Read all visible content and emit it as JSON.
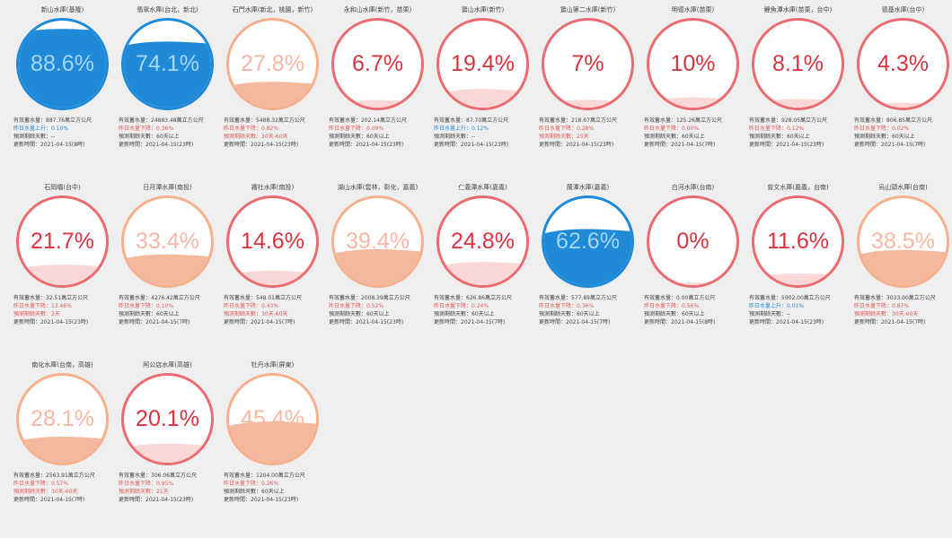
{
  "colors": {
    "blue": "#1f8ad8",
    "blue_text": "#a8d6f5",
    "red": "#ea6c70",
    "red_text": "#d9333f",
    "orange": "#f6b08c",
    "orange_fill": "#f4b89e",
    "orange_text": "#f6b8a4",
    "pink_fill": "#fbd7d8",
    "change_down": "#e05a5a",
    "change_up": "#2a8bd6"
  },
  "reservoirs": [
    {
      "name": "新山水庫(基隆)",
      "percent": "88.6%",
      "level": 0.886,
      "theme": "blue",
      "storage": "有效蓄水量：887.76萬立方公尺",
      "change": "昨日水量上升：0.10%",
      "change_dir": "up",
      "warn": "",
      "days": "預測剩餘天數：--",
      "updated": "更新時間：2021-04-15(8時)"
    },
    {
      "name": "翡翠水庫(台北，新北)",
      "percent": "74.1%",
      "level": 0.741,
      "theme": "blue",
      "storage": "有效蓄水量：24883.48萬立方公尺",
      "change": "昨日水量下降：0.36%",
      "change_dir": "down",
      "warn": "",
      "days": "預測剩餘天數：60天以上",
      "updated": "更新時間：2021-04-15(23時)"
    },
    {
      "name": "石門水庫(新北，桃園，新竹)",
      "percent": "27.8%",
      "level": 0.278,
      "theme": "orange",
      "storage": "有效蓄水量：5488.32萬立方公尺",
      "change": "昨日水量下降：0.82%",
      "change_dir": "down",
      "warn": "預測剩餘天數：30天-60天",
      "days": "",
      "updated": "更新時間：2021-04-15(23時)"
    },
    {
      "name": "永和山水庫(新竹，苗栗)",
      "percent": "6.7%",
      "level": 0.067,
      "theme": "red",
      "storage": "有效蓄水量：202.14萬立方公尺",
      "change": "昨日水量下降：0.09%",
      "change_dir": "down",
      "warn": "",
      "days": "預測剩餘天數：60天以上",
      "updated": "更新時間：2021-04-15(23時)"
    },
    {
      "name": "寶山水庫(新竹)",
      "percent": "19.4%",
      "level": 0.194,
      "theme": "red",
      "storage": "有效蓄水量：87.70萬立方公尺",
      "change": "昨日水量上升：0.12%",
      "change_dir": "up",
      "warn": "",
      "days": "預測剩餘天數：--",
      "updated": "更新時間：2021-04-15(23時)"
    },
    {
      "name": "寶山第二水庫(新竹)",
      "percent": "7%",
      "level": 0.07,
      "theme": "red",
      "storage": "有效蓄水量：218.67萬立方公尺",
      "change": "昨日水量下降：0.28%",
      "change_dir": "down",
      "warn": "預測剩餘天數：25天",
      "days": "",
      "updated": "更新時間：2021-04-15(23時)"
    },
    {
      "name": "明德水庫(苗栗)",
      "percent": "10%",
      "level": 0.1,
      "theme": "red",
      "storage": "有效蓄水量：125.26萬立方公尺",
      "change": "昨日水量下降：0.00%",
      "change_dir": "down",
      "warn": "",
      "days": "預測剩餘天數：60天以上",
      "updated": "更新時間：2021-04-15(7時)"
    },
    {
      "name": "鯉魚潭水庫(苗栗，台中)",
      "percent": "8.1%",
      "level": 0.081,
      "theme": "red",
      "storage": "有效蓄水量：928.05萬立方公尺",
      "change": "昨日水量下降：0.12%",
      "change_dir": "down",
      "warn": "",
      "days": "預測剩餘天數：60天以上",
      "updated": "更新時間：2021-04-15(23時)"
    },
    {
      "name": "德基水庫(台中)",
      "percent": "4.3%",
      "level": 0.043,
      "theme": "red",
      "storage": "有效蓄水量：806.85萬立方公尺",
      "change": "昨日水量下降：0.02%",
      "change_dir": "down",
      "warn": "",
      "days": "預測剩餘天數：60天以上",
      "updated": "更新時間：2021-04-15(7時)"
    },
    {
      "name": "石岡壩(台中)",
      "percent": "21.7%",
      "level": 0.217,
      "theme": "red",
      "storage": "有效蓄水量：32.51萬立方公尺",
      "change": "昨日水量下降：13.46%",
      "change_dir": "down",
      "warn": "預測剩餘天數：2天",
      "days": "",
      "updated": "更新時間：2021-04-15(23時)"
    },
    {
      "name": "日月潭水庫(南投)",
      "percent": "33.4%",
      "level": 0.334,
      "theme": "orange",
      "storage": "有效蓄水量：4276.42萬立方公尺",
      "change": "昨日水量下降：0.10%",
      "change_dir": "down",
      "warn": "",
      "days": "預測剩餘天數：60天以上",
      "updated": "更新時間：2021-04-15(7時)"
    },
    {
      "name": "霧社水庫(南投)",
      "percent": "14.6%",
      "level": 0.146,
      "theme": "red",
      "storage": "有效蓄水量：548.01萬立方公尺",
      "change": "昨日水量下降：0.43%",
      "change_dir": "down",
      "warn": "預測剩餘天數：30天-60天",
      "days": "",
      "updated": "更新時間：2021-04-15(7時)"
    },
    {
      "name": "湖山水庫(雲林，彰化，嘉義)",
      "percent": "39.4%",
      "level": 0.394,
      "theme": "orange",
      "storage": "有效蓄水量：2008.39萬立方公尺",
      "change": "昨日水量下降：0.52%",
      "change_dir": "down",
      "warn": "",
      "days": "預測剩餘天數：60天以上",
      "updated": "更新時間：2021-04-15(23時)"
    },
    {
      "name": "仁義潭水庫(嘉義)",
      "percent": "24.8%",
      "level": 0.248,
      "theme": "red",
      "storage": "有效蓄水量：626.86萬立方公尺",
      "change": "昨日水量下降：0.24%",
      "change_dir": "down",
      "warn": "",
      "days": "預測剩餘天數：60天以上",
      "updated": "更新時間：2021-04-15(7時)"
    },
    {
      "name": "蘭潭水庫(嘉義)",
      "percent": "62.6%",
      "level": 0.626,
      "theme": "blue",
      "storage": "有效蓄水量：577.89萬立方公尺",
      "change": "昨日水量下降：0.36%",
      "change_dir": "down",
      "warn": "",
      "days": "預測剩餘天數：60天以上",
      "updated": "更新時間：2021-04-15(7時)"
    },
    {
      "name": "白河水庫(台南)",
      "percent": "0%",
      "level": 0.0,
      "theme": "red",
      "storage": "有效蓄水量：0.00萬立方公尺",
      "change": "昨日水量下降：0.56%",
      "change_dir": "down",
      "warn": "",
      "days": "預測剩餘天數：60天以上",
      "updated": "更新時間：2021-04-15(8時)"
    },
    {
      "name": "曾文水庫(嘉義，台南)",
      "percent": "11.6%",
      "level": 0.116,
      "theme": "red",
      "storage": "有效蓄水量：5902.00萬立方公尺",
      "change": "昨日水量上升：0.01%",
      "change_dir": "up",
      "warn": "",
      "days": "預測剩餘天數：--",
      "updated": "更新時間：2021-04-15(23時)"
    },
    {
      "name": "烏山頭水庫(台南)",
      "percent": "38.5%",
      "level": 0.385,
      "theme": "orange",
      "storage": "有效蓄水量：3033.00萬立方公尺",
      "change": "昨日水量下降：0.87%",
      "change_dir": "down",
      "warn": "預測剩餘天數：30天-60天",
      "days": "",
      "updated": "更新時間：2021-04-15(7時)"
    },
    {
      "name": "南化水庫(台南，高雄)",
      "percent": "28.1%",
      "level": 0.281,
      "theme": "orange",
      "storage": "有效蓄水量：2563.91萬立方公尺",
      "change": "昨日水量下降：0.57%",
      "change_dir": "down",
      "warn": "預測剩餘天數：30天-60天",
      "days": "",
      "updated": "更新時間：2021-04-15(7時)"
    },
    {
      "name": "阿公店水庫(高雄)",
      "percent": "20.1%",
      "level": 0.201,
      "theme": "red",
      "storage": "有效蓄水量：306.06萬立方公尺",
      "change": "昨日水量下降：0.95%",
      "change_dir": "down",
      "warn": "預測剩餘天數：21天",
      "days": "",
      "updated": "更新時間：2021-04-15(23時)"
    },
    {
      "name": "牡丹水庫(屏東)",
      "percent": "45.4%",
      "level": 0.454,
      "theme": "orange",
      "storage": "有效蓄水量：1204.00萬立方公尺",
      "change": "昨日水量下降：0.26%",
      "change_dir": "down",
      "warn": "",
      "days": "預測剩餘天數：60天以上",
      "updated": "更新時間：2021-04-15(23時)"
    }
  ]
}
